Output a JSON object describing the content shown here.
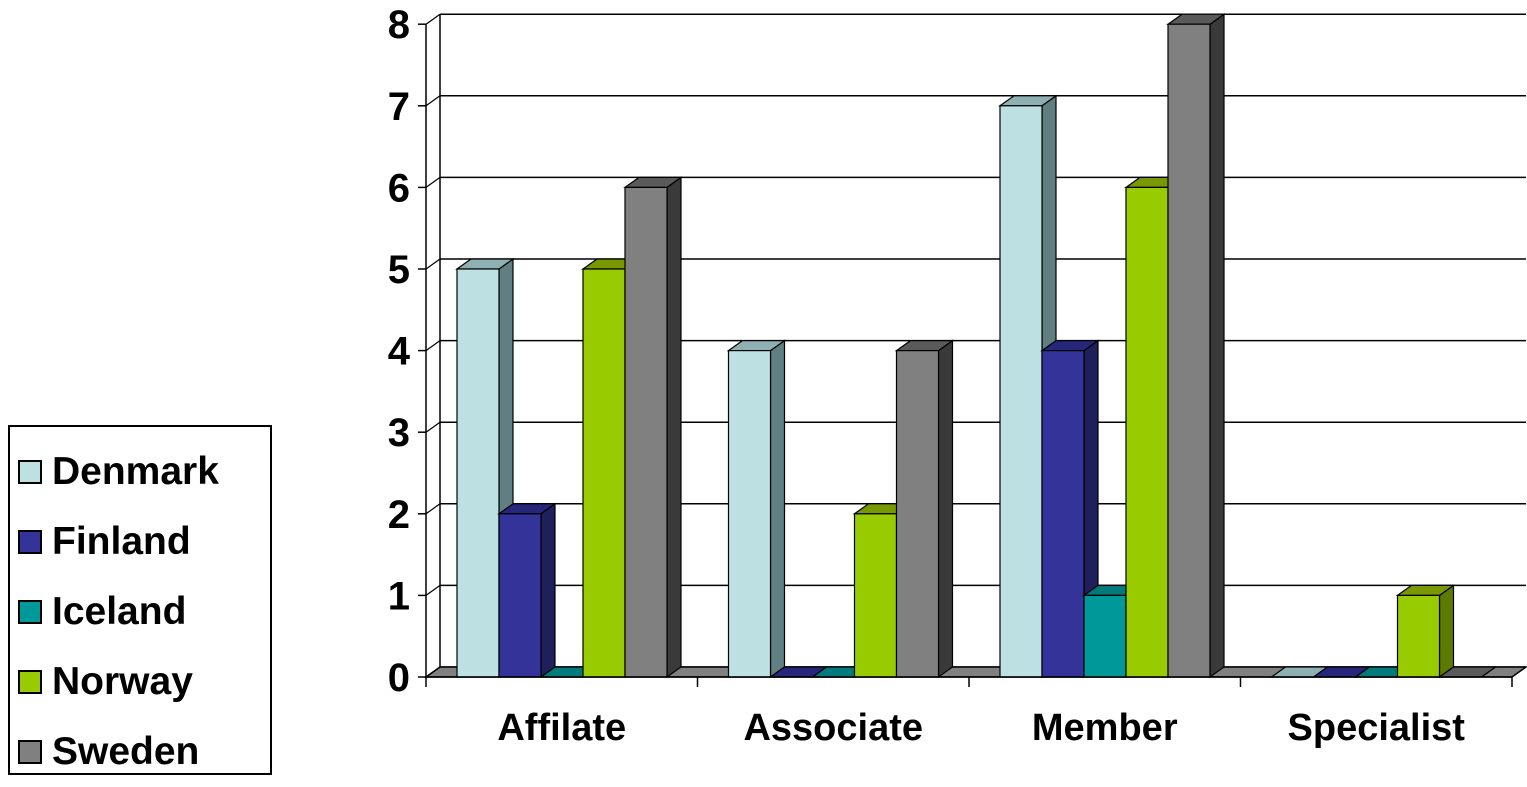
{
  "chart_data": {
    "type": "bar",
    "categories": [
      "Affilate",
      "Associate",
      "Member",
      "Specialist"
    ],
    "series": [
      {
        "name": "Denmark",
        "color": "#bde0e3",
        "side": "#5f7f82",
        "top": "#8fb0b3",
        "values": [
          5,
          4,
          7,
          0
        ]
      },
      {
        "name": "Finland",
        "color": "#333399",
        "side": "#1f1f5c",
        "top": "#26267a",
        "values": [
          2,
          0,
          4,
          0
        ]
      },
      {
        "name": "Iceland",
        "color": "#009999",
        "side": "#005c5c",
        "top": "#007a7a",
        "values": [
          0,
          0,
          1,
          0
        ]
      },
      {
        "name": "Norway",
        "color": "#99cc00",
        "side": "#5c7a00",
        "top": "#7a9900",
        "values": [
          5,
          2,
          6,
          1
        ]
      },
      {
        "name": "Sweden",
        "color": "#808080",
        "side": "#3a3a3a",
        "top": "#5a5a5a",
        "values": [
          6,
          4,
          8,
          0
        ]
      }
    ],
    "ylim": [
      0,
      8
    ],
    "yticks": [
      0,
      1,
      2,
      3,
      4,
      5,
      6,
      7,
      8
    ],
    "grid": true,
    "legend": "left",
    "three_d": true
  }
}
